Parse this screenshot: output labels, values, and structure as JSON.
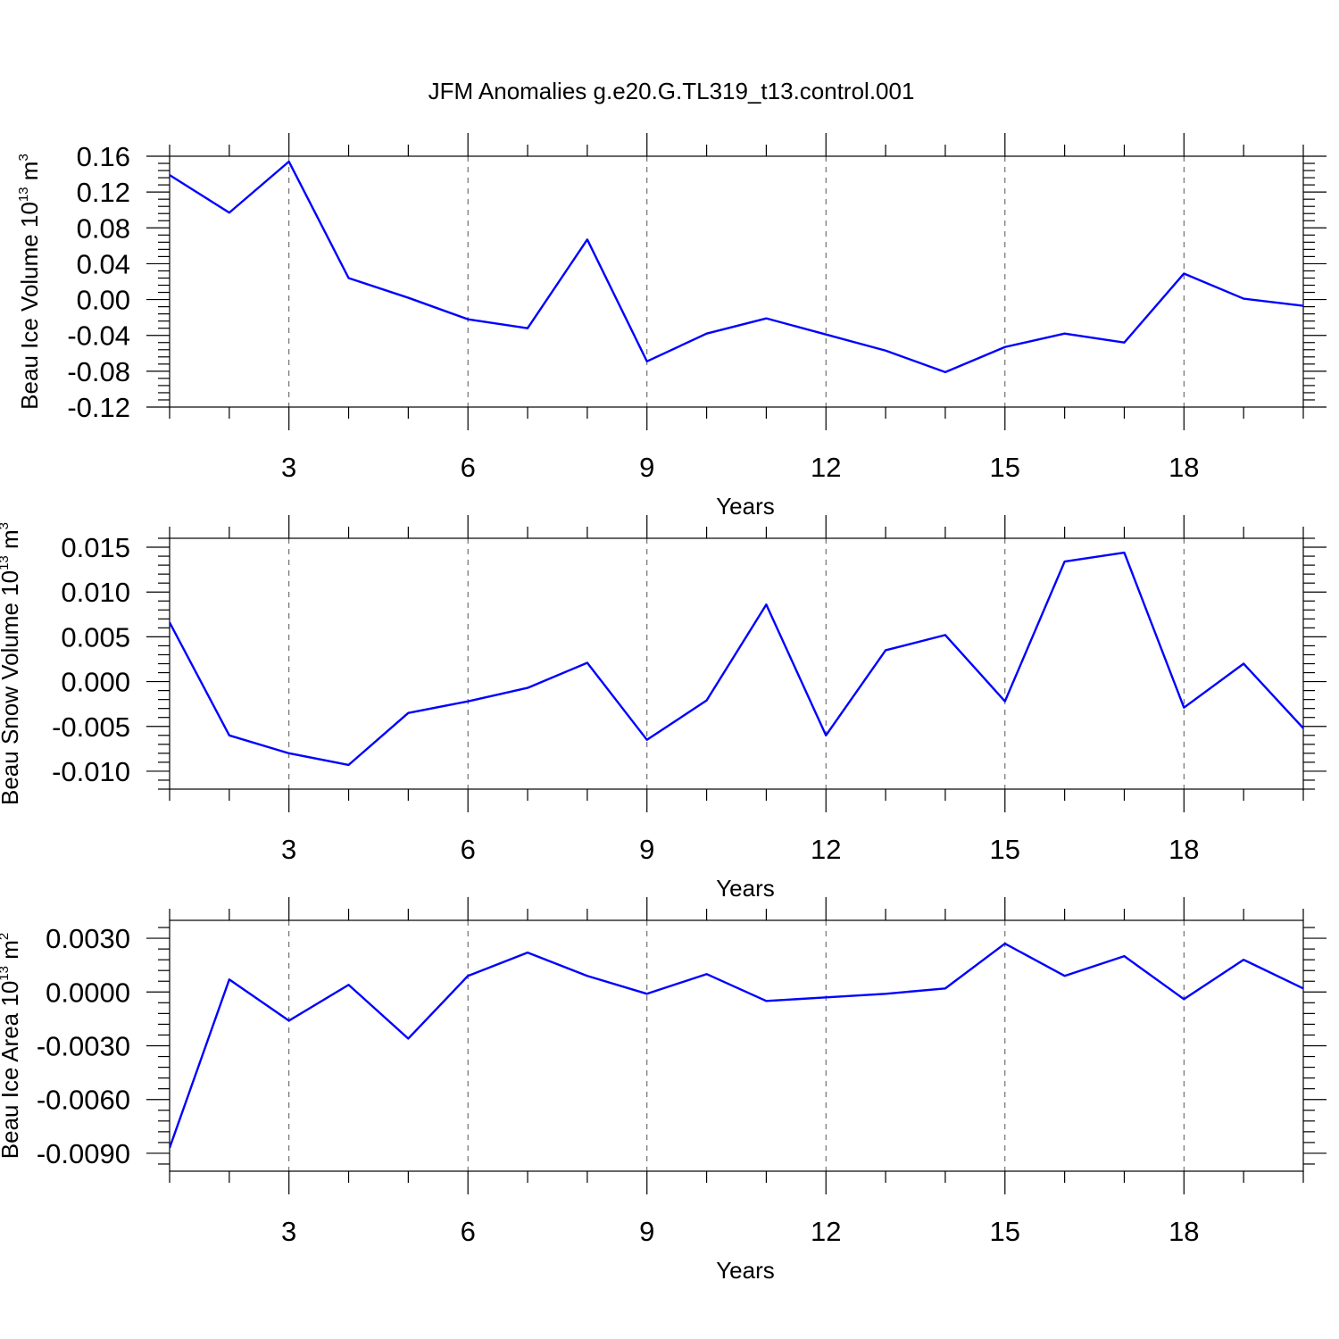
{
  "figure": {
    "title": "JFM Anomalies g.e20.G.TL319_t13.control.001",
    "line_color": "#0000ff",
    "grid_color": "#555555"
  },
  "chart_data": [
    {
      "type": "line",
      "title": "JFM Anomalies g.e20.G.TL319_t13.control.001",
      "xlabel": "Years",
      "ylabel": "Beau Ice Volume 10",
      "ylabel_exp": "13",
      "ylabel_unit": " m",
      "ylabel_unit_exp": "3",
      "xlim": [
        1,
        20
      ],
      "ylim": [
        -0.12,
        0.16
      ],
      "xticks": [
        3,
        6,
        9,
        12,
        15,
        18
      ],
      "xtick_labels": [
        "3",
        "6",
        "9",
        "12",
        "15",
        "18"
      ],
      "yticks": [
        -0.12,
        -0.08,
        -0.04,
        0.0,
        0.04,
        0.08,
        0.12,
        0.16
      ],
      "ytick_labels": [
        "-0.12",
        "-0.08",
        "-0.04",
        "0.00",
        "0.04",
        "0.08",
        "0.12",
        "0.16"
      ],
      "x": [
        1,
        2,
        3,
        4,
        5,
        6,
        7,
        8,
        9,
        10,
        11,
        12,
        13,
        14,
        15,
        16,
        17,
        18,
        19,
        20
      ],
      "series": [
        {
          "name": "Beau Ice Volume",
          "values": [
            0.139,
            0.097,
            0.154,
            0.024,
            0.002,
            -0.022,
            -0.032,
            0.067,
            -0.069,
            -0.038,
            -0.021,
            -0.039,
            -0.057,
            -0.081,
            -0.053,
            -0.038,
            -0.048,
            0.029,
            0.001,
            -0.007
          ]
        }
      ]
    },
    {
      "type": "line",
      "xlabel": "Years",
      "ylabel": "Beau Snow Volume 10",
      "ylabel_exp": "13",
      "ylabel_unit": " m",
      "ylabel_unit_exp": "3",
      "xlim": [
        1,
        20
      ],
      "ylim": [
        -0.012,
        0.016
      ],
      "xticks": [
        3,
        6,
        9,
        12,
        15,
        18
      ],
      "xtick_labels": [
        "3",
        "6",
        "9",
        "12",
        "15",
        "18"
      ],
      "yticks": [
        -0.01,
        -0.005,
        0.0,
        0.005,
        0.01,
        0.015
      ],
      "ytick_labels": [
        "-0.010",
        "-0.005",
        "0.000",
        "0.005",
        "0.010",
        "0.015"
      ],
      "x": [
        1,
        2,
        3,
        4,
        5,
        6,
        7,
        8,
        9,
        10,
        11,
        12,
        13,
        14,
        15,
        16,
        17,
        18,
        19,
        20
      ],
      "series": [
        {
          "name": "Beau Snow Volume",
          "values": [
            0.0066,
            -0.006,
            -0.008,
            -0.0093,
            -0.0035,
            -0.0022,
            -0.0007,
            0.0021,
            -0.0065,
            -0.0021,
            0.0086,
            -0.006,
            0.0035,
            0.0052,
            -0.0022,
            0.0134,
            0.0144,
            -0.0029,
            0.002,
            -0.0052
          ]
        }
      ]
    },
    {
      "type": "line",
      "xlabel": "Years",
      "ylabel": "Beau Ice Area 10",
      "ylabel_exp": "13",
      "ylabel_unit": " m",
      "ylabel_unit_exp": "2",
      "xlim": [
        1,
        20
      ],
      "ylim": [
        -0.01,
        0.004
      ],
      "xticks": [
        3,
        6,
        9,
        12,
        15,
        18
      ],
      "xtick_labels": [
        "3",
        "6",
        "9",
        "12",
        "15",
        "18"
      ],
      "yticks": [
        -0.009,
        -0.006,
        -0.003,
        0.0,
        0.003
      ],
      "ytick_labels": [
        "-0.0090",
        "-0.0060",
        "-0.0030",
        "0.0000",
        "0.0030"
      ],
      "x": [
        1,
        2,
        3,
        4,
        5,
        6,
        7,
        8,
        9,
        10,
        11,
        12,
        13,
        14,
        15,
        16,
        17,
        18,
        19,
        20
      ],
      "series": [
        {
          "name": "Beau Ice Area",
          "values": [
            -0.0087,
            0.0007,
            -0.0016,
            0.0004,
            -0.0026,
            0.0009,
            0.0022,
            0.0009,
            -0.0001,
            0.001,
            -0.0005,
            -0.0003,
            -0.0001,
            0.0002,
            0.0027,
            0.0009,
            0.002,
            -0.0004,
            0.0018,
            0.0002
          ]
        }
      ]
    }
  ]
}
